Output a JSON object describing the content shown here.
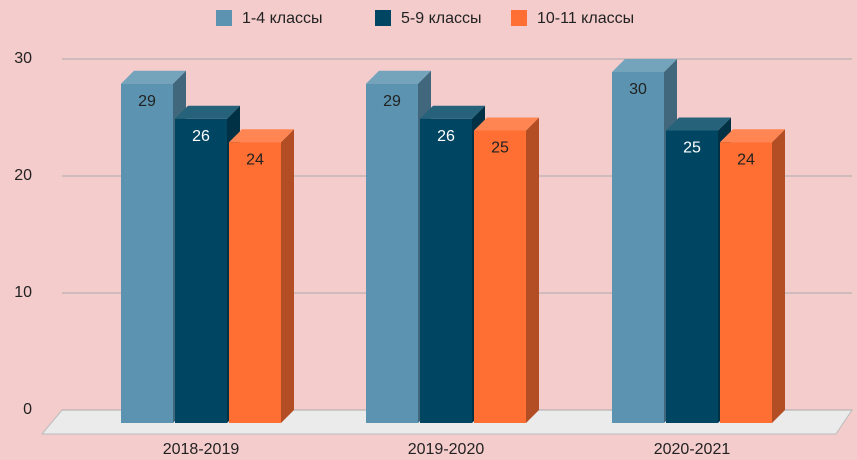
{
  "chart_data": {
    "type": "bar3d",
    "categories": [
      "2018-2019",
      "2019-2020",
      "2020-2021"
    ],
    "series": [
      {
        "name": "1-4 классы",
        "color": "#5b93b0",
        "values": [
          29,
          29,
          30
        ]
      },
      {
        "name": "5-9 классы",
        "color": "#004663",
        "values": [
          26,
          26,
          25
        ]
      },
      {
        "name": "10-11 классы",
        "color": "#ff6f33",
        "values": [
          24,
          25,
          24
        ]
      }
    ],
    "ylim": [
      0,
      30
    ],
    "yticks": [
      0,
      10,
      20,
      30
    ],
    "grid": true,
    "legend": "top"
  }
}
